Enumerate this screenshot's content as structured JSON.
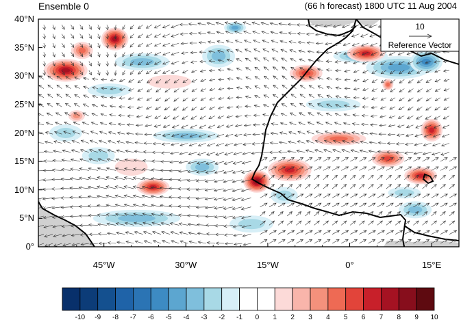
{
  "header": {
    "left_title": "Ensemble 0",
    "right_title": "(66 h forecast) 1800 UTC 11 Aug 2004"
  },
  "map": {
    "lat_labels": [
      "40°N",
      "35°N",
      "30°N",
      "25°N",
      "20°N",
      "15°N",
      "10°N",
      "5°N",
      "0°"
    ],
    "lon_labels": [
      "45°W",
      "30°W",
      "15°W",
      "0°",
      "15°E"
    ],
    "lat_range": [
      0,
      40
    ],
    "lon_range": [
      -57,
      20
    ],
    "land_mask_color": "#d0d0d0",
    "coastline_color": "#000000",
    "vector_color": "#333333"
  },
  "reference_vector": {
    "magnitude": "10",
    "label": "Reference Vector"
  },
  "colorbar": {
    "labels": [
      "-10",
      "-9",
      "-8",
      "-7",
      "-6",
      "-5",
      "-4",
      "-3",
      "-2",
      "-1",
      "0",
      "1",
      "2",
      "3",
      "4",
      "5",
      "6",
      "7",
      "8",
      "9",
      "10"
    ],
    "colors": [
      "#08306b",
      "#0c3c78",
      "#14508f",
      "#1f63a8",
      "#2b74b4",
      "#3d8bc3",
      "#5ca6d0",
      "#7fbfdc",
      "#a8d9e6",
      "#d7eff7",
      "#ffffff",
      "#ffffff",
      "#fcdad8",
      "#f9b5ab",
      "#f4917c",
      "#ee6a54",
      "#e2443a",
      "#c8202a",
      "#a51222",
      "#870e1c",
      "#5e0a10"
    ]
  },
  "shading_blobs": {
    "positive": [
      {
        "lon": -52,
        "lat": 31,
        "rx": 4,
        "ry": 2,
        "v": 7
      },
      {
        "lon": -43,
        "lat": 36.5,
        "rx": 2.5,
        "ry": 2,
        "v": 7
      },
      {
        "lon": -49,
        "lat": 34.5,
        "rx": 2,
        "ry": 1.5,
        "v": 4
      },
      {
        "lon": -36,
        "lat": 10.5,
        "rx": 3,
        "ry": 1.5,
        "v": 6
      },
      {
        "lon": -17,
        "lat": 11.5,
        "rx": 2.5,
        "ry": 2,
        "v": 8
      },
      {
        "lon": -11,
        "lat": 13.5,
        "rx": 4,
        "ry": 2,
        "v": 6
      },
      {
        "lon": -8,
        "lat": 30.5,
        "rx": 3,
        "ry": 1.5,
        "v": 5
      },
      {
        "lon": 3,
        "lat": 34,
        "rx": 3.5,
        "ry": 1.5,
        "v": 6
      },
      {
        "lon": -2,
        "lat": 19,
        "rx": 5,
        "ry": 1.2,
        "v": 4
      },
      {
        "lon": 7,
        "lat": 15.5,
        "rx": 3,
        "ry": 1.5,
        "v": 5
      },
      {
        "lon": 13,
        "lat": 12.5,
        "rx": 3,
        "ry": 1.5,
        "v": 6
      },
      {
        "lon": 15,
        "lat": 20.5,
        "rx": 2,
        "ry": 2,
        "v": 6
      },
      {
        "lon": -50,
        "lat": 23,
        "rx": 1.5,
        "ry": 1,
        "v": 3
      },
      {
        "lon": 7,
        "lat": 28.5,
        "rx": 1,
        "ry": 1,
        "v": 4
      },
      {
        "lon": -33,
        "lat": 29,
        "rx": 4,
        "ry": 1.2,
        "v": 1
      },
      {
        "lon": -40,
        "lat": 14,
        "rx": 3,
        "ry": 1.5,
        "v": 1
      }
    ],
    "negative": [
      {
        "lon": -38,
        "lat": 32.5,
        "rx": 5,
        "ry": 1.5,
        "v": -3
      },
      {
        "lon": -24,
        "lat": 33.5,
        "rx": 3,
        "ry": 2,
        "v": -3
      },
      {
        "lon": -21,
        "lat": 38.5,
        "rx": 2,
        "ry": 1,
        "v": -4
      },
      {
        "lon": -39,
        "lat": 5,
        "rx": 8,
        "ry": 1.5,
        "v": -3
      },
      {
        "lon": -44,
        "lat": 27.5,
        "rx": 4,
        "ry": 1.2,
        "v": -2
      },
      {
        "lon": -30,
        "lat": 19.5,
        "rx": 6,
        "ry": 1.2,
        "v": -3
      },
      {
        "lon": 9,
        "lat": 31.5,
        "rx": 6,
        "ry": 2,
        "v": -4
      },
      {
        "lon": 14,
        "lat": 32.5,
        "rx": 3,
        "ry": 2,
        "v": -5
      },
      {
        "lon": 2,
        "lat": 33.5,
        "rx": 5,
        "ry": 1.2,
        "v": -4
      },
      {
        "lon": -3,
        "lat": 25,
        "rx": 5,
        "ry": 1.2,
        "v": -2
      },
      {
        "lon": 12,
        "lat": 6.5,
        "rx": 3,
        "ry": 1.5,
        "v": -3
      },
      {
        "lon": 10,
        "lat": 9.5,
        "rx": 3,
        "ry": 1,
        "v": -2
      },
      {
        "lon": -12,
        "lat": 9,
        "rx": 2.5,
        "ry": 1.5,
        "v": -2
      },
      {
        "lon": -18,
        "lat": 4,
        "rx": 4,
        "ry": 1.5,
        "v": -2
      },
      {
        "lon": -46,
        "lat": 16,
        "rx": 3,
        "ry": 1.5,
        "v": -2
      },
      {
        "lon": -27,
        "lat": 14,
        "rx": 3,
        "ry": 1.5,
        "v": -3
      },
      {
        "lon": -52,
        "lat": 20,
        "rx": 3,
        "ry": 1.5,
        "v": -2
      }
    ]
  }
}
